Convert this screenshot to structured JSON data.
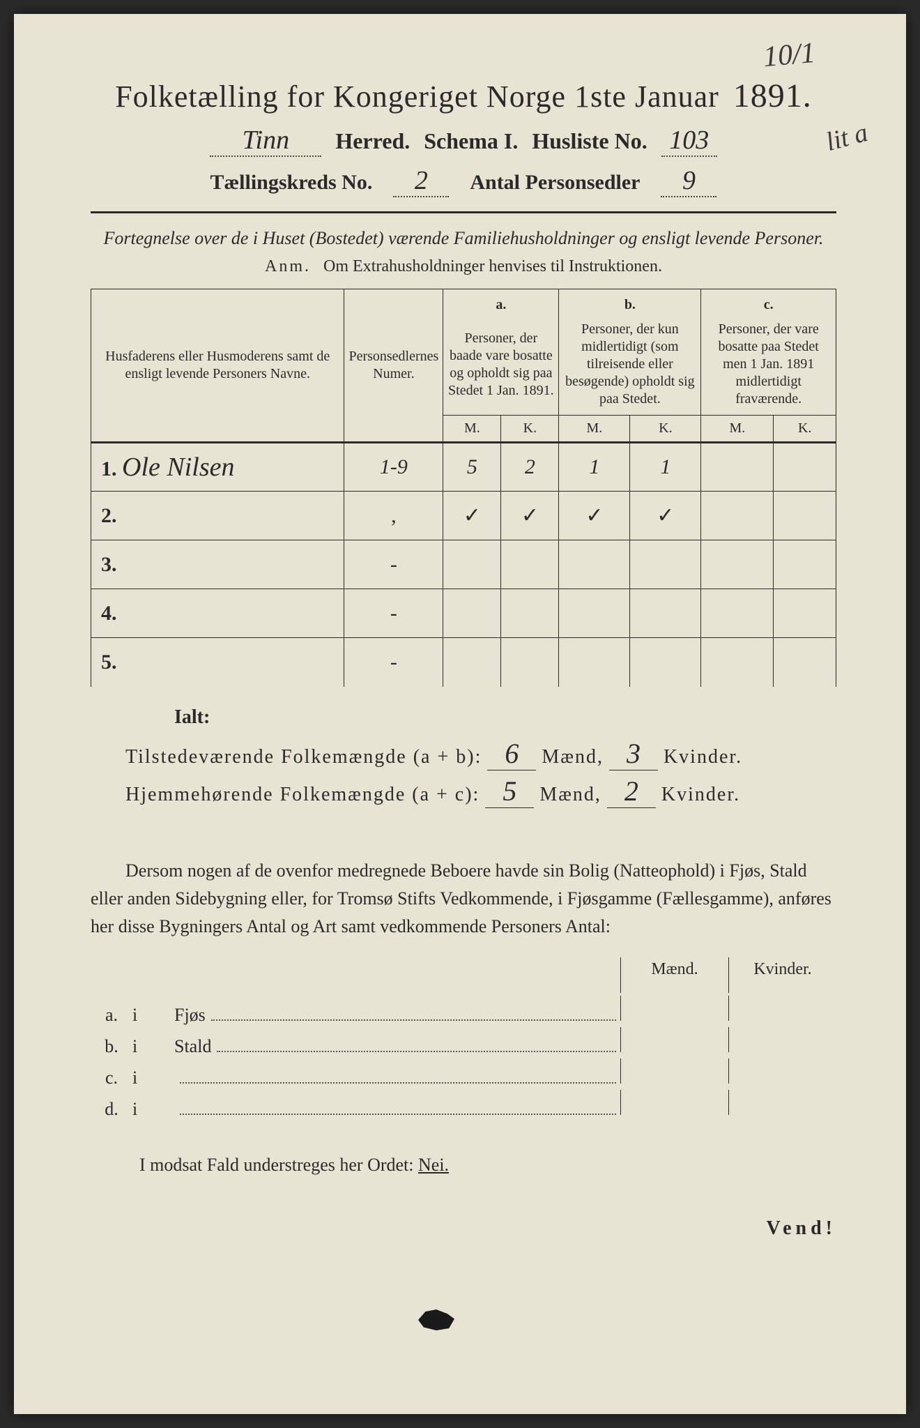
{
  "page_annotation_corner": "10/1",
  "margin_annotation": "lit a",
  "title": "Folketælling for Kongeriget Norge 1ste Januar",
  "year": "1891.",
  "herred_value": "Tinn",
  "herred_label": "Herred.",
  "schema_label": "Schema I.",
  "husliste_label": "Husliste No.",
  "husliste_value": "103",
  "kreds_label": "Tællingskreds No.",
  "kreds_value": "2",
  "personsedler_label": "Antal Personsedler",
  "personsedler_value": "9",
  "subtitle": "Fortegnelse over de i Huset (Bostedet) værende Familiehusholdninger og ensligt levende Personer.",
  "anm_label": "Anm.",
  "anm_text": "Om Extrahusholdninger henvises til Instruktionen.",
  "table": {
    "col_names": "Husfaderens eller Husmoderens samt de ensligt levende Personers Navne.",
    "col_nums": "Personsedlernes Numer.",
    "col_a_letter": "a.",
    "col_a": "Personer, der baade vare bosatte og opholdt sig paa Stedet 1 Jan. 1891.",
    "col_b_letter": "b.",
    "col_b": "Personer, der kun midlertidigt (som tilreisende eller besøgende) opholdt sig paa Stedet.",
    "col_c_letter": "c.",
    "col_c": "Personer, der vare bosatte paa Stedet men 1 Jan. 1891 midlertidigt fraværende.",
    "m": "M.",
    "k": "K.",
    "rows": [
      {
        "n": "1.",
        "name": "Ole Nilsen",
        "nums": "1-9",
        "am": "5",
        "ak": "2",
        "bm": "1",
        "bk": "1",
        "cm": "",
        "ck": ""
      },
      {
        "n": "2.",
        "name": "",
        "nums": ",",
        "am": "✓",
        "ak": "✓",
        "bm": "✓",
        "bk": "✓",
        "cm": "",
        "ck": ""
      },
      {
        "n": "3.",
        "name": "",
        "nums": "-",
        "am": "",
        "ak": "",
        "bm": "",
        "bk": "",
        "cm": "",
        "ck": ""
      },
      {
        "n": "4.",
        "name": "",
        "nums": "-",
        "am": "",
        "ak": "",
        "bm": "",
        "bk": "",
        "cm": "",
        "ck": ""
      },
      {
        "n": "5.",
        "name": "",
        "nums": "-",
        "am": "",
        "ak": "",
        "bm": "",
        "bk": "",
        "cm": "",
        "ck": ""
      }
    ]
  },
  "ialt": {
    "label": "Ialt:",
    "line1_label": "Tilstedeværende Folkemængde (a + b):",
    "line1_m": "6",
    "line1_k": "3",
    "line2_label": "Hjemmehørende Folkemængde (a + c):",
    "line2_m": "5",
    "line2_k": "2",
    "maend": "Mænd,",
    "kvinder": "Kvinder."
  },
  "paragraph": "Dersom nogen af de ovenfor medregnede Beboere havde sin Bolig (Natteophold) i Fjøs, Stald eller anden Sidebygning eller, for Tromsø Stifts Vedkommende, i Fjøsgamme (Fællesgamme), anføres her disse Bygningers Antal og Art samt vedkommende Personers Antal:",
  "bygning": {
    "maend": "Mænd.",
    "kvinder": "Kvinder.",
    "rows": [
      {
        "letter": "a.",
        "i": "i",
        "label": "Fjøs"
      },
      {
        "letter": "b.",
        "i": "i",
        "label": "Stald"
      },
      {
        "letter": "c.",
        "i": "i",
        "label": ""
      },
      {
        "letter": "d.",
        "i": "i",
        "label": ""
      }
    ]
  },
  "footer": "I modsat Fald understreges her Ordet:",
  "footer_word": "Nei.",
  "vend": "Vend!",
  "colors": {
    "paper": "#e8e4d4",
    "ink": "#2a2a2a",
    "background": "#2a2a2a"
  },
  "typography": {
    "title_size": 44,
    "body_size": 26,
    "table_header_size": 20
  }
}
